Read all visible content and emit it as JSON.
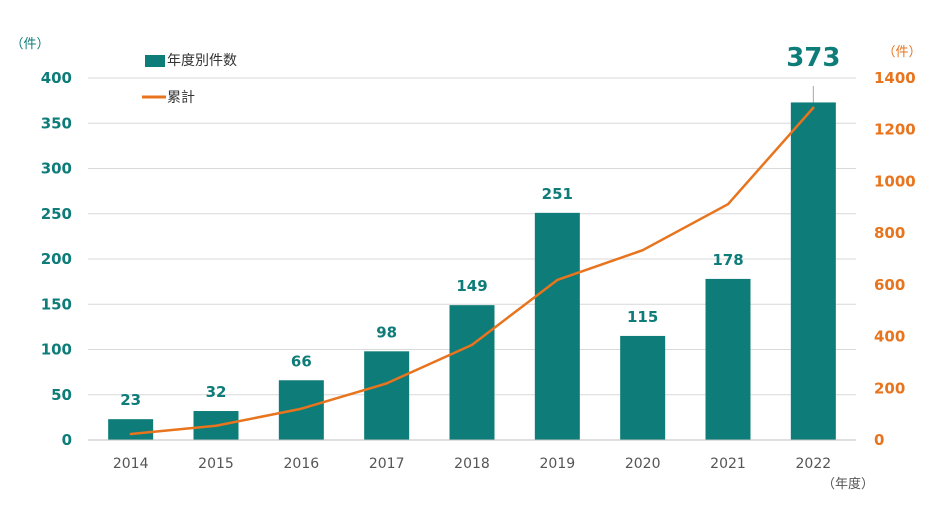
{
  "chart_data": {
    "type": "bar+line",
    "categories": [
      "2014",
      "2015",
      "2016",
      "2017",
      "2018",
      "2019",
      "2020",
      "2021",
      "2022"
    ],
    "series": [
      {
        "name": "年度別件数",
        "type": "bar",
        "axis": "left",
        "color": "#0e7c78",
        "values": [
          23,
          32,
          66,
          98,
          149,
          251,
          115,
          178,
          373
        ]
      },
      {
        "name": "累計",
        "type": "line",
        "axis": "right",
        "color": "#e8741d",
        "values": [
          23,
          55,
          121,
          219,
          368,
          619,
          734,
          912,
          1285
        ]
      }
    ],
    "data_labels": [
      "23",
      "32",
      "66",
      "98",
      "149",
      "251",
      "115",
      "178",
      "373"
    ],
    "left_axis": {
      "unit": "（件）",
      "ticks": [
        "0",
        "50",
        "100",
        "150",
        "200",
        "250",
        "300",
        "350",
        "400"
      ],
      "ylim": [
        0,
        400
      ]
    },
    "right_axis": {
      "unit": "（件）",
      "ticks": [
        "0",
        "200",
        "400",
        "600",
        "800",
        "1000",
        "1200",
        "1400"
      ],
      "ylim": [
        0,
        1400
      ]
    },
    "x_unit": "（年度）",
    "legend": {
      "placement": "top-left",
      "items": [
        "年度別件数",
        "累計"
      ]
    },
    "grid": true
  }
}
